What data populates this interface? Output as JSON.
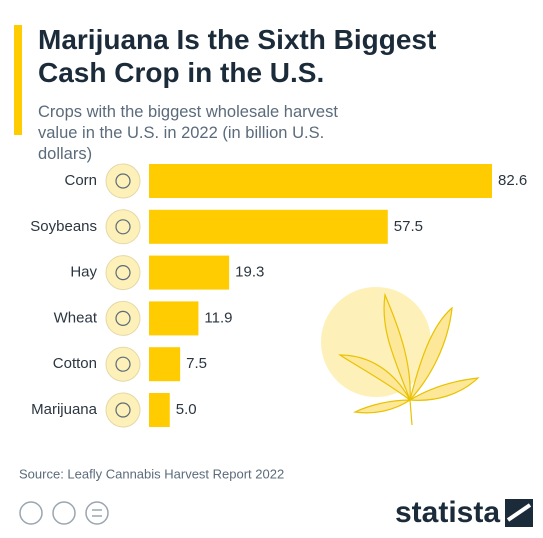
{
  "chart_data": {
    "type": "bar",
    "orientation": "horizontal",
    "title": "Marijuana Is the Sixth Biggest Cash Crop in the U.S.",
    "subtitle": "Crops with the biggest wholesale harvest value in the U.S. in 2022 (in billion U.S. dollars)",
    "categories": [
      "Corn",
      "Soybeans",
      "Hay",
      "Wheat",
      "Cotton",
      "Marijuana"
    ],
    "values": [
      82.6,
      57.5,
      19.3,
      11.9,
      7.5,
      5.0
    ],
    "value_labels": [
      "82.6",
      "57.5",
      "19.3",
      "11.9",
      "7.5",
      "5.0"
    ],
    "color": "#fecc00",
    "source": "Source: Leafly Cannabis Harvest Report 2022",
    "brand": "statista"
  }
}
